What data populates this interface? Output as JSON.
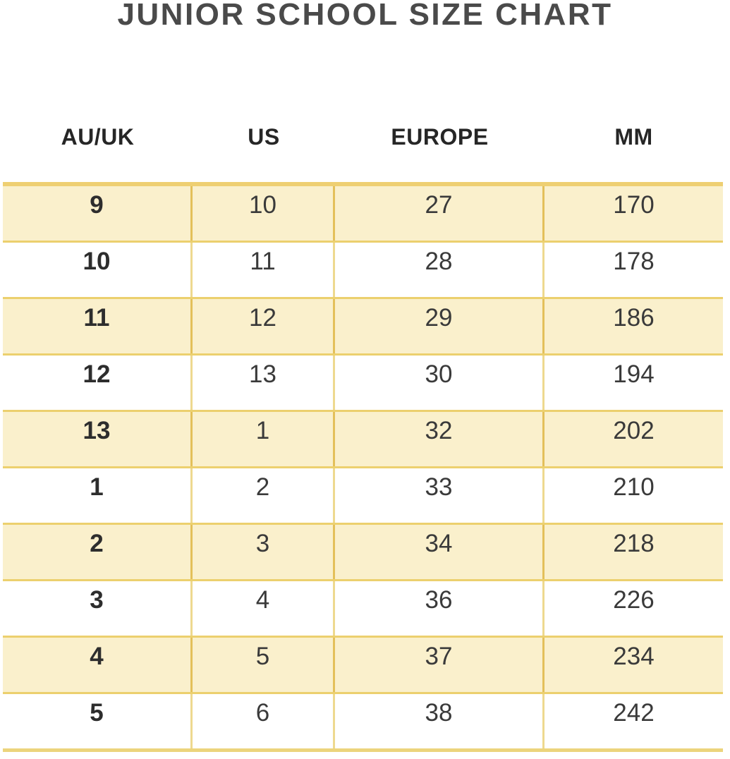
{
  "title": "JUNIOR SCHOOL SIZE CHART",
  "chart_data": {
    "type": "table",
    "title": "JUNIOR SCHOOL SIZE CHART",
    "columns": [
      "AU/UK",
      "US",
      "EUROPE",
      "MM"
    ],
    "rows": [
      [
        "9",
        "10",
        "27",
        "170"
      ],
      [
        "10",
        "11",
        "28",
        "178"
      ],
      [
        "11",
        "12",
        "29",
        "186"
      ],
      [
        "12",
        "13",
        "30",
        "194"
      ],
      [
        "13",
        "1",
        "32",
        "202"
      ],
      [
        "1",
        "2",
        "33",
        "210"
      ],
      [
        "2",
        "3",
        "34",
        "218"
      ],
      [
        "3",
        "4",
        "36",
        "226"
      ],
      [
        "4",
        "5",
        "37",
        "234"
      ],
      [
        "5",
        "6",
        "38",
        "242"
      ]
    ],
    "layout": {
      "highlighted_row_indices": [
        0,
        2,
        4,
        6,
        8
      ],
      "first_column_bold": true
    }
  },
  "colors": {
    "row_highlight_bg": "#faf0cc",
    "row_plain_bg": "#ffffff",
    "table_top_border": "#eecf72",
    "table_bottom_border": "#ecd47c",
    "row_separator": "#ecd06e",
    "divider_on_highlight": "#e3c05a",
    "divider_on_plain": "#eed98f",
    "title_text": "#4a4a4a",
    "header_text": "#262626",
    "cell_text": "#3a3a3a"
  }
}
